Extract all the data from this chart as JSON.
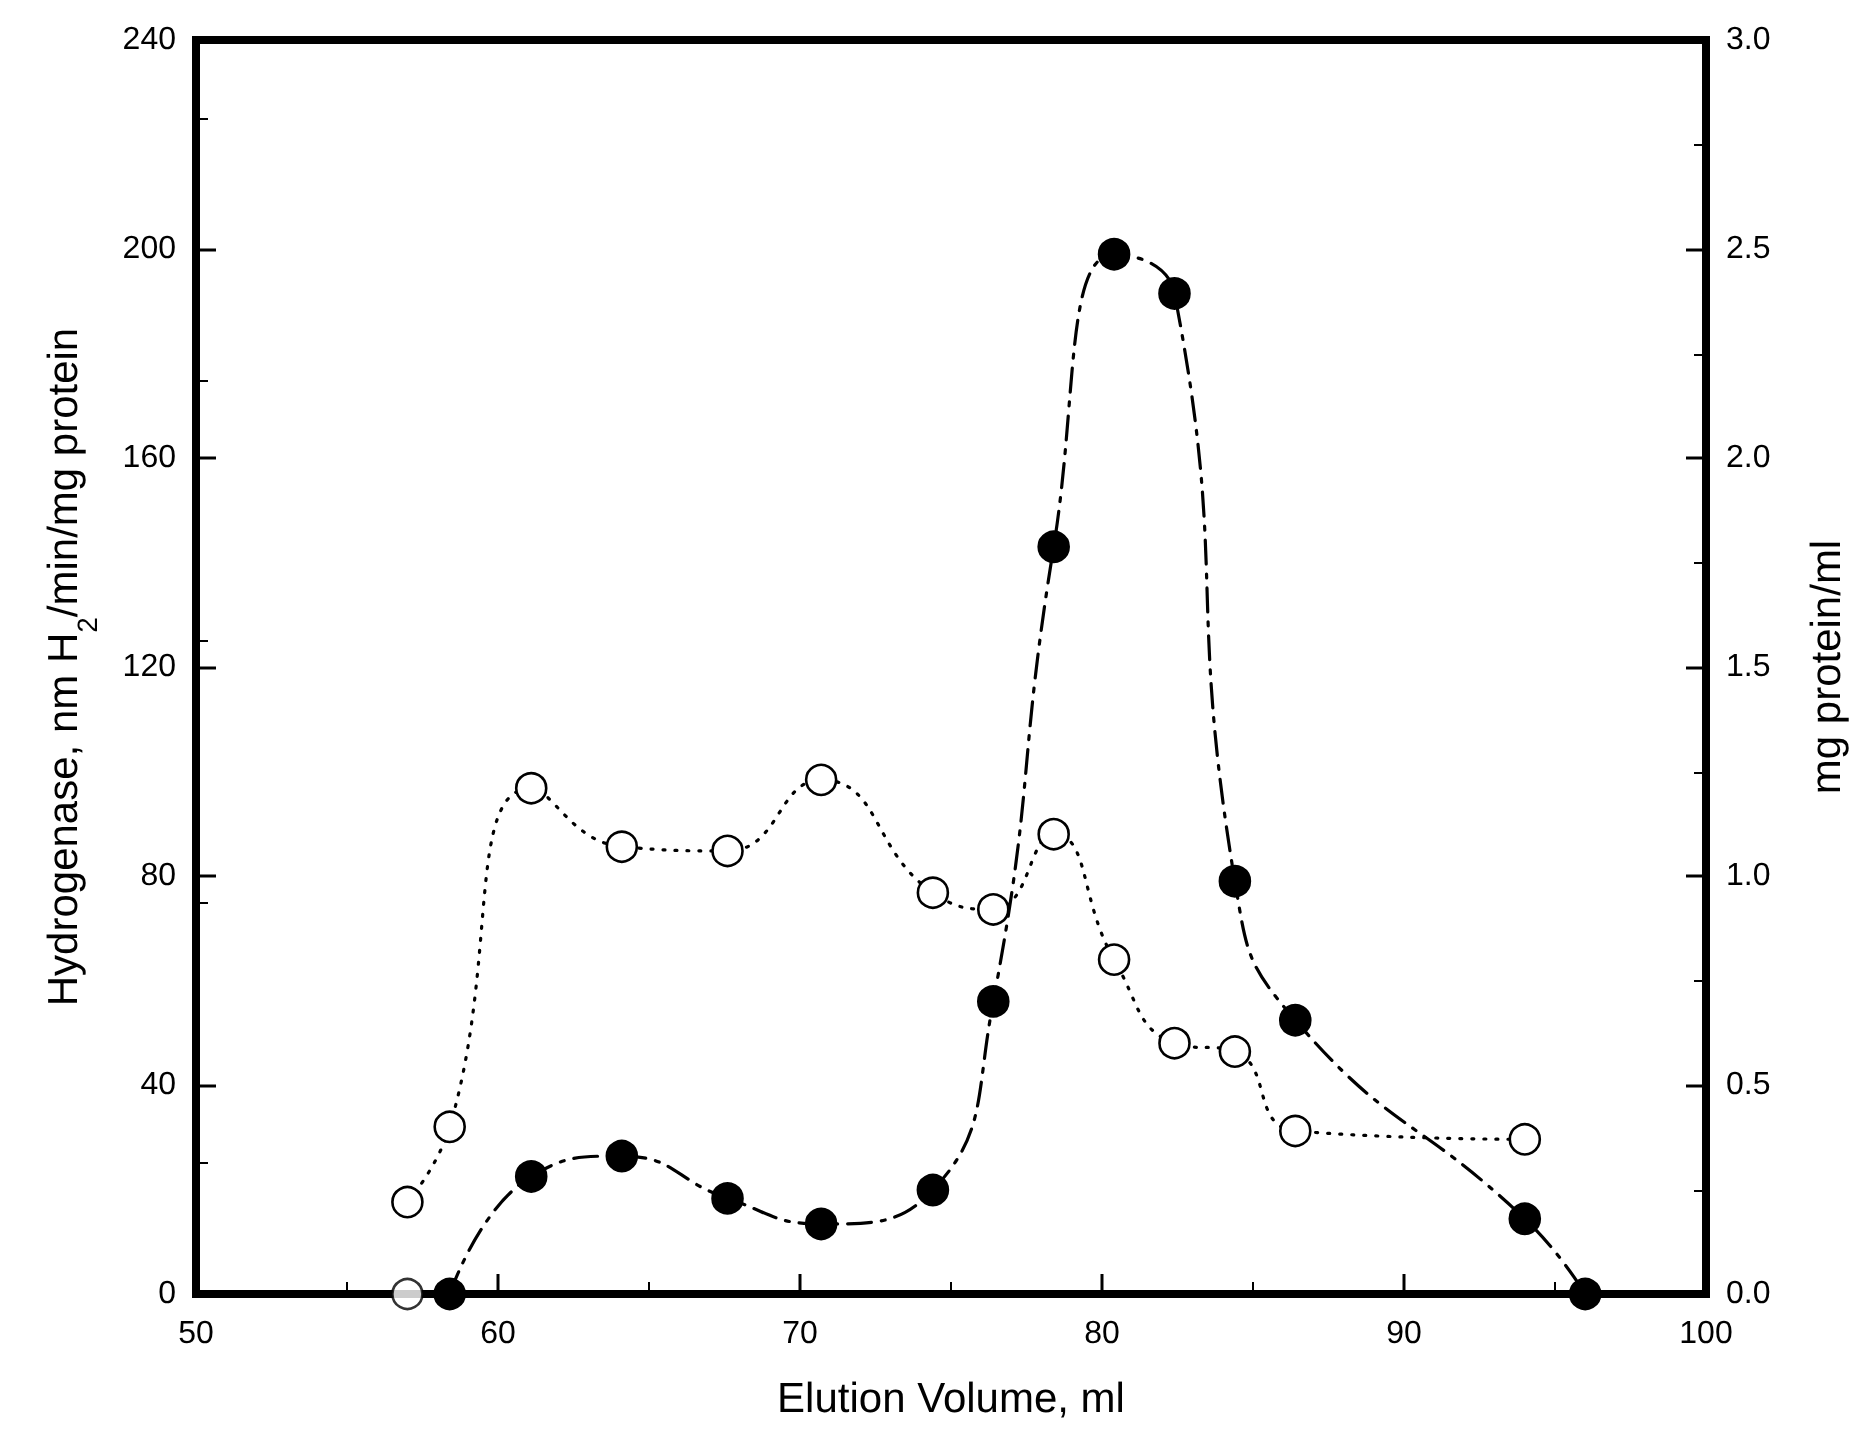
{
  "chart_data": {
    "type": "line",
    "xlabel": "Elution Volume, ml",
    "ylabel": "Hydrogenase, nm H$_{2}$/min/mg protein",
    "y2label": "mg protein/ml",
    "xlim": [
      50,
      100
    ],
    "xticks": [
      50,
      60,
      70,
      80,
      90,
      100
    ],
    "ylim": [
      0,
      240
    ],
    "yticks": [
      0,
      40,
      80,
      120,
      160,
      200,
      240
    ],
    "y2lim": [
      0,
      3.0
    ],
    "y2ticks": [
      {
        "value": 0,
        "label": "0.0"
      },
      {
        "value": 0.5,
        "label": "0.5"
      },
      {
        "value": 1.0,
        "label": "1.0"
      },
      {
        "value": 1.5,
        "label": "1.5"
      },
      {
        "value": 2.0,
        "label": "2.0"
      },
      {
        "value": 2.5,
        "label": "2.5"
      },
      {
        "value": 3.0,
        "label": "3.0"
      }
    ],
    "grid": false,
    "marker": "circle",
    "series": [
      {
        "color": "#000000",
        "line_style": "dashed",
        "x": [
          58.4,
          61.1,
          64.1,
          67.6,
          70.7,
          74.4,
          76.4,
          78.4,
          80.4,
          82.4,
          84.4,
          86.4,
          94.0,
          96.0
        ],
        "values": [
          0,
          22.5,
          26.4,
          18.3,
          13.4,
          19.9,
          56,
          143,
          199,
          191.5,
          79,
          52.4,
          14.4,
          0
        ]
      },
      {
        "color": "#000000",
        "line_style": "dotted",
        "axis": "y2",
        "x": [
          57.0,
          58.4,
          61.1,
          64.1,
          67.6,
          70.7,
          74.4,
          76.4,
          78.4,
          80.4,
          82.4,
          84.4,
          86.4,
          94.0
        ],
        "values": [
          0.22,
          0.4,
          1.21,
          1.07,
          1.06,
          1.23,
          0.96,
          0.92,
          1.1,
          0.8,
          0.6,
          0.58,
          0.39,
          0.37
        ]
      },
      {
        "type": "scatter",
        "color": "#000000",
        "axis": "y2",
        "x": [
          57.0
        ],
        "values": [
          0
        ]
      }
    ]
  }
}
